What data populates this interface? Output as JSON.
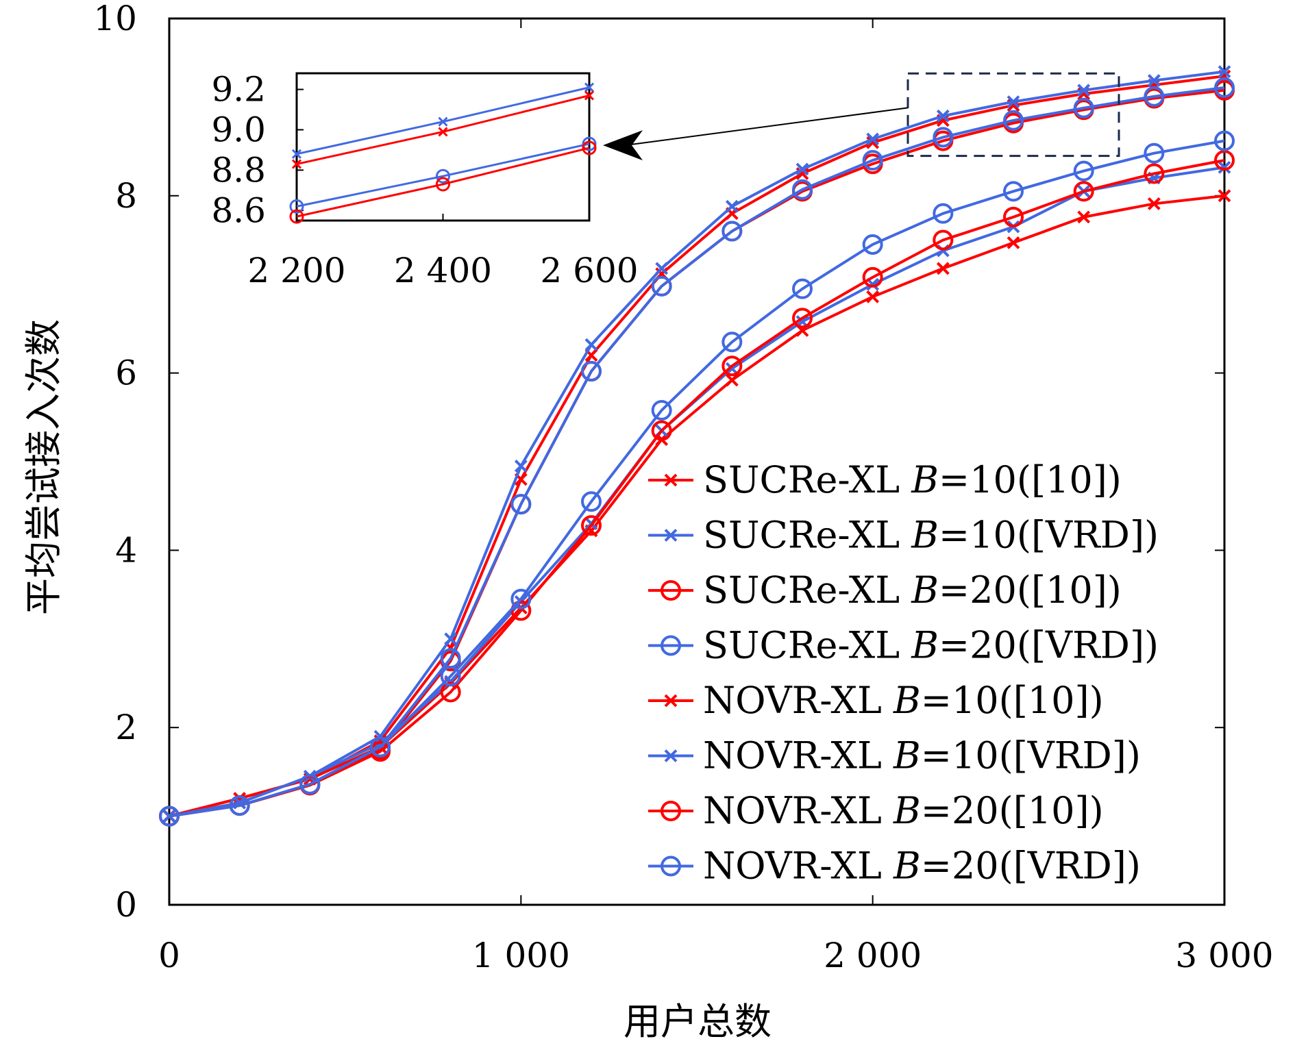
{
  "chart_data": {
    "type": "line",
    "xlabel": "用户总数",
    "ylabel": "平均尝试接入次数",
    "xlim": [
      0,
      3000
    ],
    "ylim": [
      0,
      10
    ],
    "xticks": [
      0,
      1000,
      2000,
      3000
    ],
    "xtick_labels": [
      "0",
      "1 000",
      "2 000",
      "3 000"
    ],
    "yticks": [
      0,
      2,
      4,
      6,
      8,
      10
    ],
    "ytick_labels": [
      "0",
      "2",
      "4",
      "6",
      "8",
      "10"
    ],
    "x": [
      0,
      200,
      400,
      600,
      800,
      1000,
      1200,
      1400,
      1600,
      1800,
      2000,
      2200,
      2400,
      2600,
      2800,
      3000
    ],
    "colors": {
      "red": "#ff0000",
      "blue": "#4169e1"
    },
    "legend_location": "lower-right",
    "series": [
      {
        "name": "SUCRe-XL",
        "b": "10([10])",
        "color": "red",
        "marker": "x",
        "values": [
          1.0,
          1.2,
          1.42,
          1.85,
          2.9,
          4.8,
          6.2,
          7.12,
          7.8,
          8.25,
          8.6,
          8.85,
          9.02,
          9.15,
          9.25,
          9.35
        ]
      },
      {
        "name": "SUCRe-XL",
        "b": "10([VRD])",
        "color": "blue",
        "marker": "x",
        "values": [
          1.0,
          1.15,
          1.45,
          1.9,
          3.0,
          4.95,
          6.32,
          7.18,
          7.88,
          8.3,
          8.64,
          8.9,
          9.06,
          9.19,
          9.3,
          9.4
        ]
      },
      {
        "name": "SUCRe-XL",
        "b": "20([10])",
        "color": "red",
        "marker": "o",
        "values": [
          1.0,
          1.12,
          1.35,
          1.75,
          2.75,
          4.52,
          6.02,
          6.98,
          7.6,
          8.05,
          8.36,
          8.62,
          8.82,
          8.97,
          9.1,
          9.19
        ]
      },
      {
        "name": "SUCRe-XL",
        "b": "20([VRD])",
        "color": "blue",
        "marker": "o",
        "values": [
          1.0,
          1.12,
          1.36,
          1.78,
          2.78,
          4.52,
          6.02,
          6.98,
          7.6,
          8.07,
          8.4,
          8.66,
          8.85,
          8.99,
          9.12,
          9.22
        ]
      },
      {
        "name": "NOVR-XL",
        "b": "10([10])",
        "color": "red",
        "marker": "x",
        "values": [
          1.0,
          1.2,
          1.42,
          1.78,
          2.5,
          3.35,
          4.22,
          5.25,
          5.92,
          6.48,
          6.86,
          7.18,
          7.47,
          7.76,
          7.91,
          8.0
        ]
      },
      {
        "name": "NOVR-XL",
        "b": "10([VRD])",
        "color": "blue",
        "marker": "x",
        "values": [
          1.0,
          1.15,
          1.45,
          1.82,
          2.52,
          3.42,
          4.3,
          5.35,
          6.05,
          6.58,
          7.0,
          7.38,
          7.65,
          8.05,
          8.2,
          8.32
        ]
      },
      {
        "name": "NOVR-XL",
        "b": "20([10])",
        "color": "red",
        "marker": "o",
        "values": [
          1.0,
          1.12,
          1.35,
          1.73,
          2.4,
          3.32,
          4.28,
          5.35,
          6.08,
          6.62,
          7.08,
          7.5,
          7.76,
          8.05,
          8.25,
          8.4
        ]
      },
      {
        "name": "NOVR-XL",
        "b": "20([VRD])",
        "color": "blue",
        "marker": "o",
        "values": [
          1.0,
          1.12,
          1.36,
          1.78,
          2.58,
          3.45,
          4.55,
          5.58,
          6.35,
          6.95,
          7.45,
          7.8,
          8.05,
          8.28,
          8.48,
          8.62
        ]
      }
    ],
    "inset": {
      "xlim": [
        2200,
        2600
      ],
      "ylim": [
        8.55,
        9.28
      ],
      "xticks": [
        2200,
        2400,
        2600
      ],
      "xtick_labels": [
        "2 200",
        "2 400",
        "2 600"
      ],
      "yticks": [
        8.6,
        8.8,
        9.0,
        9.2
      ],
      "ytick_labels": [
        "8.6",
        "8.8",
        "9.0",
        "9.2"
      ],
      "zoom_region": {
        "x": [
          2100,
          2700
        ],
        "y": [
          8.45,
          9.38
        ]
      },
      "series": [
        {
          "color": "blue",
          "marker": "x",
          "x": [
            2200,
            2400,
            2600
          ],
          "values": [
            8.88,
            9.04,
            9.21
          ]
        },
        {
          "color": "red",
          "marker": "x",
          "x": [
            2200,
            2400,
            2600
          ],
          "values": [
            8.83,
            8.99,
            9.17
          ]
        },
        {
          "color": "blue",
          "marker": "o",
          "x": [
            2200,
            2400,
            2600
          ],
          "values": [
            8.62,
            8.77,
            8.93
          ]
        },
        {
          "color": "red",
          "marker": "o",
          "x": [
            2200,
            2400,
            2600
          ],
          "values": [
            8.57,
            8.73,
            8.91
          ]
        }
      ]
    }
  }
}
